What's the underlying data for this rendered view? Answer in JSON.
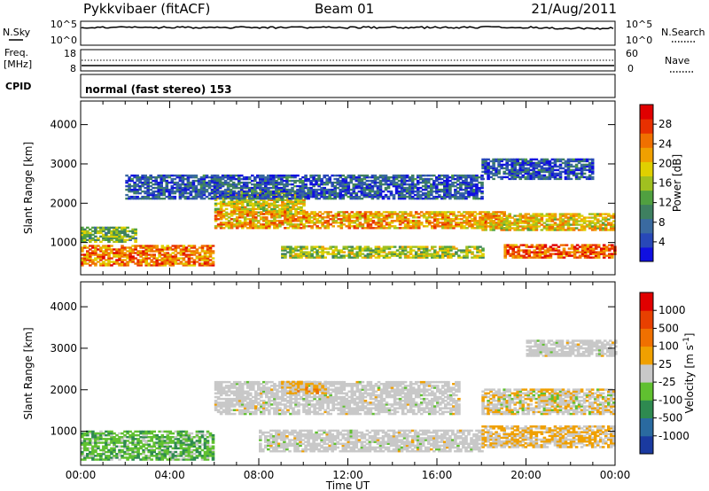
{
  "header": {
    "title": "Pykkvibaer (fitACF)",
    "beam": "Beam 01",
    "date": "21/Aug/2011"
  },
  "panels": {
    "nsky": {
      "left_label": "N.Sky",
      "left_ticks": [
        "10^5",
        "10^0"
      ],
      "right_label": "N.Search",
      "right_ticks": [
        "10^5",
        "10^0"
      ]
    },
    "freq": {
      "left_label_1": "Freq.",
      "left_label_2": "[MHz]",
      "left_ticks": [
        "18",
        "8"
      ],
      "right_label": "Nave",
      "right_ticks": [
        "60",
        "0"
      ]
    },
    "cpid": {
      "label": "CPID",
      "mode_text": "normal (fast stereo) 153"
    }
  },
  "chart_data": [
    {
      "type": "heatmap",
      "title": "",
      "xlabel": "Time UT",
      "ylabel": "Slant Range [km]",
      "x_ticks": [
        "00:00",
        "04:00",
        "08:00",
        "12:00",
        "16:00",
        "20:00",
        "00:00"
      ],
      "y_ticks": [
        "1000",
        "2000",
        "3000",
        "4000"
      ],
      "ylim": [
        180,
        4600
      ],
      "colorbar": {
        "label": "Power [dB]",
        "ticks": [
          "4",
          "8",
          "12",
          "16",
          "20",
          "24",
          "28"
        ],
        "range": [
          0,
          32
        ],
        "colors": [
          "#1010e0",
          "#2848b8",
          "#3a6aa0",
          "#3e8060",
          "#50a040",
          "#a0c020",
          "#e0d000",
          "#f0a000",
          "#f07000",
          "#e83000",
          "#e00000"
        ]
      },
      "bands": [
        {
          "t": [
            0,
            6
          ],
          "r": [
            400,
            900
          ],
          "dB": 24
        },
        {
          "t": [
            0,
            2.5
          ],
          "r": [
            1000,
            1400
          ],
          "dB": 14
        },
        {
          "t": [
            6,
            10
          ],
          "r": [
            1700,
            2300
          ],
          "dB": 18
        },
        {
          "t": [
            6,
            19
          ],
          "r": [
            1350,
            1800
          ],
          "dB": 22
        },
        {
          "t": [
            9,
            18
          ],
          "r": [
            600,
            900
          ],
          "dB": 16
        },
        {
          "t": [
            19,
            24
          ],
          "r": [
            600,
            950
          ],
          "dB": 26
        },
        {
          "t": [
            18,
            24
          ],
          "r": [
            1300,
            1750
          ],
          "dB": 20
        },
        {
          "t": [
            2,
            18
          ],
          "r": [
            2100,
            2700
          ],
          "dB": 6
        },
        {
          "t": [
            18,
            23
          ],
          "r": [
            2600,
            3100
          ],
          "dB": 6
        }
      ]
    },
    {
      "type": "heatmap",
      "title": "",
      "xlabel": "Time UT",
      "ylabel": "Slant Range [km]",
      "x_ticks": [
        "00:00",
        "04:00",
        "08:00",
        "12:00",
        "16:00",
        "20:00",
        "00:00"
      ],
      "y_ticks": [
        "1000",
        "2000",
        "3000",
        "4000"
      ],
      "ylim": [
        180,
        4600
      ],
      "colorbar": {
        "label": "Velocity [m s^-1]",
        "ticks": [
          "1000",
          "500",
          "100",
          "25",
          "-25",
          "-100",
          "-500",
          "-1000"
        ],
        "range": [
          -1200,
          1200
        ],
        "colors": [
          "#1a3aa0",
          "#2a6aa0",
          "#2e8a50",
          "#60c030",
          "#c8c8c8",
          "#f0a000",
          "#f07000",
          "#e84000",
          "#e00000"
        ]
      },
      "bands": [
        {
          "t": [
            0,
            6
          ],
          "r": [
            300,
            1000
          ],
          "ms": -300
        },
        {
          "t": [
            6,
            17
          ],
          "r": [
            1400,
            2200
          ],
          "ms": 0
        },
        {
          "t": [
            8,
            18
          ],
          "r": [
            500,
            1000
          ],
          "ms": 0
        },
        {
          "t": [
            9,
            11
          ],
          "r": [
            1900,
            2200
          ],
          "ms": 200
        },
        {
          "t": [
            18,
            24
          ],
          "r": [
            600,
            1100
          ],
          "ms": 150
        },
        {
          "t": [
            18,
            24
          ],
          "r": [
            1400,
            2000
          ],
          "ms": 50
        },
        {
          "t": [
            20,
            24
          ],
          "r": [
            2800,
            3200
          ],
          "ms": 0
        }
      ]
    }
  ]
}
